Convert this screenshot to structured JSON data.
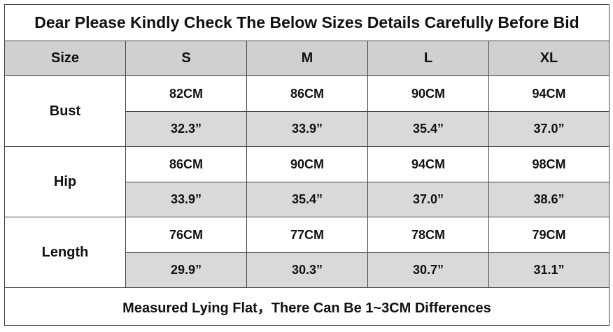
{
  "title": "Dear Please Kindly Check The Below Sizes Details Carefully Before Bid",
  "header": [
    "Size",
    "S",
    "M",
    "L",
    "XL"
  ],
  "rows": [
    {
      "label": "Bust",
      "cm": [
        "82CM",
        "86CM",
        "90CM",
        "94CM"
      ],
      "inch": [
        "32.3”",
        "33.9”",
        "35.4”",
        "37.0”"
      ]
    },
    {
      "label": "Hip",
      "cm": [
        "86CM",
        "90CM",
        "94CM",
        "98CM"
      ],
      "inch": [
        "33.9”",
        "35.4”",
        "37.0”",
        "38.6”"
      ]
    },
    {
      "label": "Length",
      "cm": [
        "76CM",
        "77CM",
        "78CM",
        "79CM"
      ],
      "inch": [
        "29.9”",
        "30.3”",
        "30.7”",
        "31.1”"
      ]
    }
  ],
  "footer": "Measured Lying Flat，There Can Be 1~3CM Differences"
}
